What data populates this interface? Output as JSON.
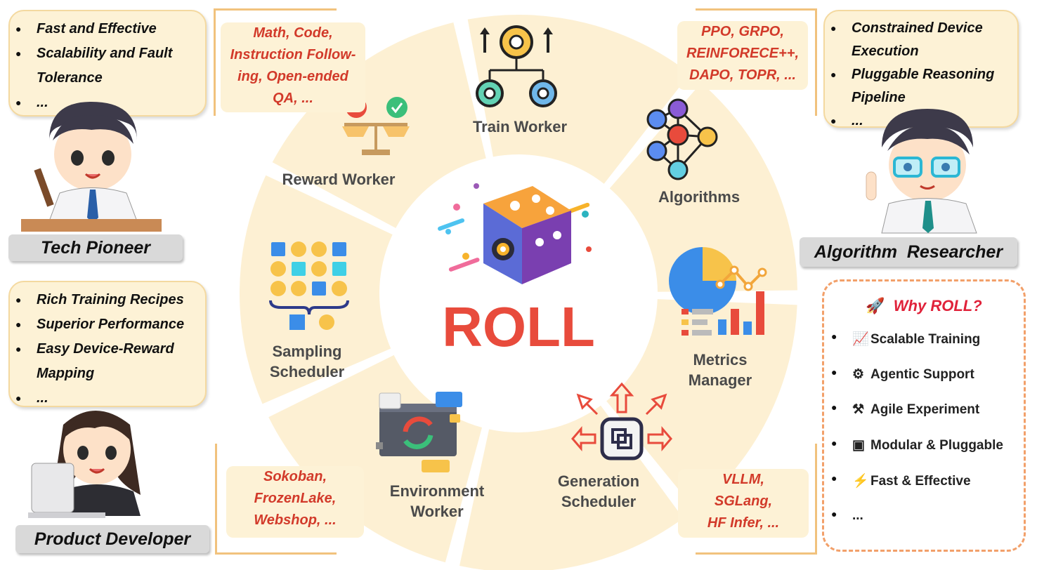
{
  "center": {
    "title": "ROLL"
  },
  "segments": [
    {
      "label": "Train Worker"
    },
    {
      "label": "Algorithms"
    },
    {
      "label": "Metrics\nManager"
    },
    {
      "label": "Generation\nScheduler"
    },
    {
      "label": "Environment\nWorker"
    },
    {
      "label": "Sampling\nScheduler"
    },
    {
      "label": "Reward Worker"
    }
  ],
  "notes": {
    "reward": "Math, Code,\nInstruction Follow-\ning, Open-ended\nQA, ...",
    "algorithms": "PPO, GRPO,\nREINFORECE++,\nDAPO,   TOPR, ...",
    "environment": "Sokoban,\nFrozenLake,\nWebshop, ...",
    "generation": "VLLM,\nSGLang,\nHF Infer, ..."
  },
  "roles": [
    {
      "name": "Tech Pioneer",
      "items": [
        "Fast and Effective",
        "Scalability and Fault Tolerance",
        "..."
      ]
    },
    {
      "name": "Product Developer",
      "items": [
        "Rich Training Recipes",
        "Superior Performance",
        "Easy Device-Reward Mapping",
        "..."
      ]
    },
    {
      "name": "Algorithm  Researcher",
      "items": [
        "Constrained Device Execution",
        "Pluggable Reasoning Pipeline",
        "..."
      ]
    }
  ],
  "why_roll": {
    "title": "Why ROLL?",
    "title_icon": "rocket-icon",
    "items": [
      {
        "icon": "chart-icon",
        "glyph": "📈",
        "label": "Scalable Training"
      },
      {
        "icon": "gear-icon",
        "glyph": "⚙",
        "label": "Agentic Support"
      },
      {
        "icon": "tools-icon",
        "glyph": "⚒",
        "label": "Agile Experiment"
      },
      {
        "icon": "package-icon",
        "glyph": "▣",
        "label": "Modular & Pluggable"
      },
      {
        "icon": "lightning-icon",
        "glyph": "⚡",
        "label": "Fast & Effective"
      },
      {
        "icon": "",
        "glyph": "",
        "label": "..."
      }
    ]
  },
  "colors": {
    "segment_fill": "#fdf0d3",
    "accent_red": "#e84b3c",
    "note_text": "#d23a2a",
    "why_title": "#e0223a",
    "bracket": "#f1c27d"
  }
}
